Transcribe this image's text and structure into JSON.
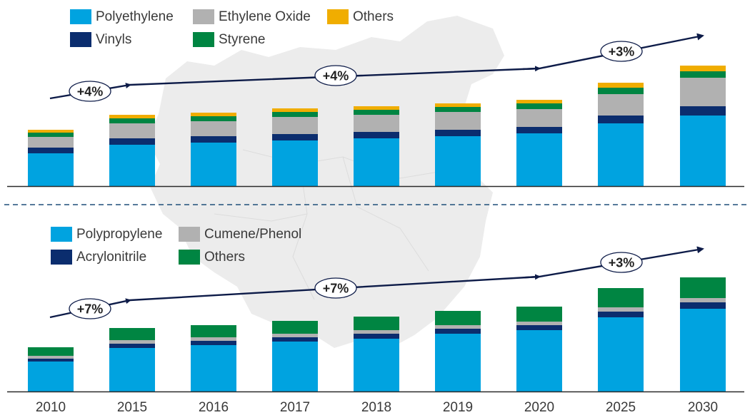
{
  "colors": {
    "polyethylene": "#00a3e0",
    "ethylene_oxide": "#b1b1b1",
    "others_yellow": "#f0ad00",
    "vinyls": "#0b2d6e",
    "styrene": "#008542",
    "polypropylene": "#00a3e0",
    "cumene_phenol": "#b1b1b1",
    "acrylonitrile": "#0b2d6e",
    "others_green": "#008542",
    "arrow": "#0d1b48",
    "axis": "#2a2a2a",
    "map": "#e9e9e9",
    "divider": "#1f4e79"
  },
  "chart_data": [
    {
      "type": "bar",
      "stacked": true,
      "title": "",
      "categories": [
        "2010",
        "2015",
        "2016",
        "2017",
        "2018",
        "2019",
        "2020",
        "2025",
        "2030"
      ],
      "ylim": [
        0,
        175
      ],
      "series": [
        {
          "name": "Polyethylene",
          "color_key": "polyethylene",
          "values": [
            46,
            58,
            61,
            64,
            67,
            70,
            74,
            88,
            99
          ]
        },
        {
          "name": "Vinyls",
          "color_key": "vinyls",
          "values": [
            8,
            9,
            9,
            9,
            9,
            9,
            9,
            11,
            13
          ]
        },
        {
          "name": "Ethylene Oxide",
          "color_key": "ethylene_oxide",
          "values": [
            15,
            21,
            21,
            24,
            24,
            25,
            25,
            30,
            40
          ]
        },
        {
          "name": "Styrene",
          "color_key": "styrene",
          "values": [
            6,
            7,
            7,
            7,
            7,
            7,
            8,
            9,
            9
          ]
        },
        {
          "name": "Others",
          "color_key": "others_yellow",
          "values": [
            4,
            5,
            5,
            5,
            5,
            5,
            5,
            7,
            8
          ]
        }
      ],
      "growth_labels": [
        "+4%",
        "+4%",
        "+3%"
      ]
    },
    {
      "type": "bar",
      "stacked": true,
      "title": "",
      "categories": [
        "2010",
        "2015",
        "2016",
        "2017",
        "2018",
        "2019",
        "2020",
        "2025",
        "2030"
      ],
      "ylim": [
        0,
        175
      ],
      "series": [
        {
          "name": "Polypropylene",
          "color_key": "polypropylene",
          "values": [
            42,
            61,
            65,
            70,
            74,
            81,
            86,
            104,
            116
          ]
        },
        {
          "name": "Acrylonitrile",
          "color_key": "acrylonitrile",
          "values": [
            4,
            6,
            6,
            6,
            7,
            7,
            7,
            8,
            9
          ]
        },
        {
          "name": "Cumene/Phenol",
          "color_key": "cumene_phenol",
          "values": [
            4,
            5,
            5,
            5,
            5,
            5,
            5,
            6,
            6
          ]
        },
        {
          "name": "Others",
          "color_key": "others_green",
          "values": [
            12,
            17,
            17,
            18,
            19,
            20,
            21,
            27,
            29
          ]
        }
      ],
      "growth_labels": [
        "+7%",
        "+7%",
        "+3%"
      ]
    }
  ],
  "legend_top": [
    {
      "label": "Polyethylene",
      "color_key": "polyethylene"
    },
    {
      "label": "Ethylene Oxide",
      "color_key": "ethylene_oxide"
    },
    {
      "label": "Others",
      "color_key": "others_yellow"
    },
    {
      "label": "Vinyls",
      "color_key": "vinyls"
    },
    {
      "label": "Styrene",
      "color_key": "styrene"
    }
  ],
  "legend_bottom": [
    {
      "label": "Polypropylene",
      "color_key": "polypropylene"
    },
    {
      "label": "Cumene/Phenol",
      "color_key": "cumene_phenol"
    },
    {
      "label": "Acrylonitrile",
      "color_key": "acrylonitrile"
    },
    {
      "label": "Others",
      "color_key": "others_green"
    }
  ]
}
